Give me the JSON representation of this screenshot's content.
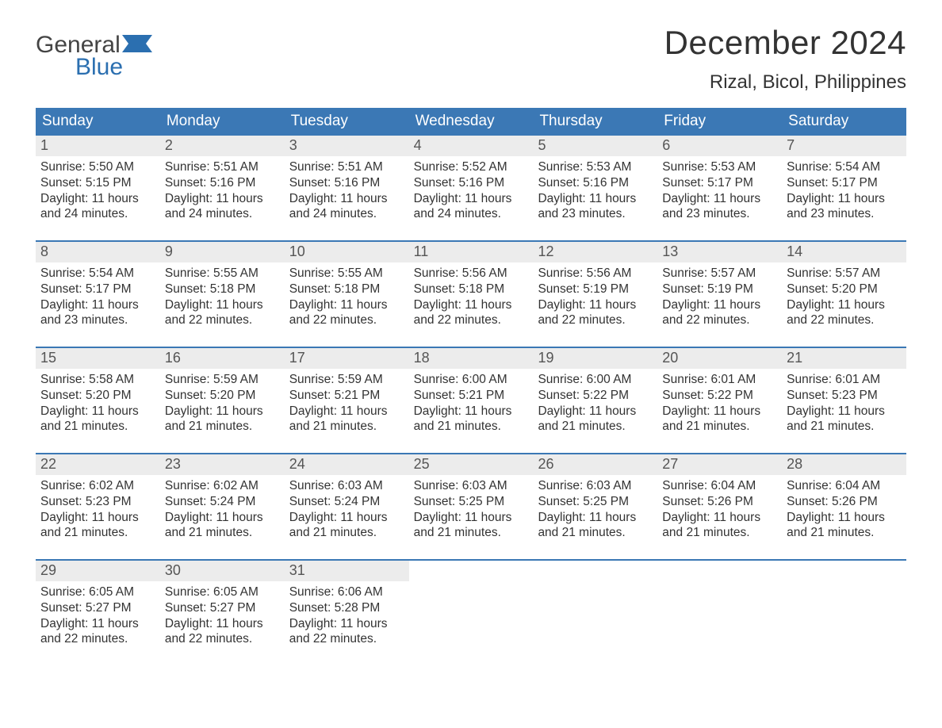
{
  "brand": {
    "word1": "General",
    "word2": "Blue",
    "word1_color": "#444444",
    "word2_color": "#2b6fb0",
    "flag_color": "#2b6fb0",
    "font_size_pt": 30
  },
  "title": {
    "month_year": "December 2024",
    "location": "Rizal, Bicol, Philippines",
    "month_fontsize": 42,
    "location_fontsize": 24,
    "color": "#333333"
  },
  "calendar": {
    "type": "table",
    "header_bg": "#3b78b5",
    "header_fg": "#ffffff",
    "header_fontsize": 19,
    "daynum_bg": "#ececec",
    "daynum_fg": "#555555",
    "daynum_fontsize": 18,
    "body_fontsize": 15.5,
    "body_fg": "#333333",
    "week_border_color": "#3b78b5",
    "background_color": "#ffffff",
    "columns": [
      "Sunday",
      "Monday",
      "Tuesday",
      "Wednesday",
      "Thursday",
      "Friday",
      "Saturday"
    ],
    "weeks": [
      [
        {
          "n": "1",
          "sunrise": "Sunrise: 5:50 AM",
          "sunset": "Sunset: 5:15 PM",
          "d1": "Daylight: 11 hours",
          "d2": "and 24 minutes."
        },
        {
          "n": "2",
          "sunrise": "Sunrise: 5:51 AM",
          "sunset": "Sunset: 5:16 PM",
          "d1": "Daylight: 11 hours",
          "d2": "and 24 minutes."
        },
        {
          "n": "3",
          "sunrise": "Sunrise: 5:51 AM",
          "sunset": "Sunset: 5:16 PM",
          "d1": "Daylight: 11 hours",
          "d2": "and 24 minutes."
        },
        {
          "n": "4",
          "sunrise": "Sunrise: 5:52 AM",
          "sunset": "Sunset: 5:16 PM",
          "d1": "Daylight: 11 hours",
          "d2": "and 24 minutes."
        },
        {
          "n": "5",
          "sunrise": "Sunrise: 5:53 AM",
          "sunset": "Sunset: 5:16 PM",
          "d1": "Daylight: 11 hours",
          "d2": "and 23 minutes."
        },
        {
          "n": "6",
          "sunrise": "Sunrise: 5:53 AM",
          "sunset": "Sunset: 5:17 PM",
          "d1": "Daylight: 11 hours",
          "d2": "and 23 minutes."
        },
        {
          "n": "7",
          "sunrise": "Sunrise: 5:54 AM",
          "sunset": "Sunset: 5:17 PM",
          "d1": "Daylight: 11 hours",
          "d2": "and 23 minutes."
        }
      ],
      [
        {
          "n": "8",
          "sunrise": "Sunrise: 5:54 AM",
          "sunset": "Sunset: 5:17 PM",
          "d1": "Daylight: 11 hours",
          "d2": "and 23 minutes."
        },
        {
          "n": "9",
          "sunrise": "Sunrise: 5:55 AM",
          "sunset": "Sunset: 5:18 PM",
          "d1": "Daylight: 11 hours",
          "d2": "and 22 minutes."
        },
        {
          "n": "10",
          "sunrise": "Sunrise: 5:55 AM",
          "sunset": "Sunset: 5:18 PM",
          "d1": "Daylight: 11 hours",
          "d2": "and 22 minutes."
        },
        {
          "n": "11",
          "sunrise": "Sunrise: 5:56 AM",
          "sunset": "Sunset: 5:18 PM",
          "d1": "Daylight: 11 hours",
          "d2": "and 22 minutes."
        },
        {
          "n": "12",
          "sunrise": "Sunrise: 5:56 AM",
          "sunset": "Sunset: 5:19 PM",
          "d1": "Daylight: 11 hours",
          "d2": "and 22 minutes."
        },
        {
          "n": "13",
          "sunrise": "Sunrise: 5:57 AM",
          "sunset": "Sunset: 5:19 PM",
          "d1": "Daylight: 11 hours",
          "d2": "and 22 minutes."
        },
        {
          "n": "14",
          "sunrise": "Sunrise: 5:57 AM",
          "sunset": "Sunset: 5:20 PM",
          "d1": "Daylight: 11 hours",
          "d2": "and 22 minutes."
        }
      ],
      [
        {
          "n": "15",
          "sunrise": "Sunrise: 5:58 AM",
          "sunset": "Sunset: 5:20 PM",
          "d1": "Daylight: 11 hours",
          "d2": "and 21 minutes."
        },
        {
          "n": "16",
          "sunrise": "Sunrise: 5:59 AM",
          "sunset": "Sunset: 5:20 PM",
          "d1": "Daylight: 11 hours",
          "d2": "and 21 minutes."
        },
        {
          "n": "17",
          "sunrise": "Sunrise: 5:59 AM",
          "sunset": "Sunset: 5:21 PM",
          "d1": "Daylight: 11 hours",
          "d2": "and 21 minutes."
        },
        {
          "n": "18",
          "sunrise": "Sunrise: 6:00 AM",
          "sunset": "Sunset: 5:21 PM",
          "d1": "Daylight: 11 hours",
          "d2": "and 21 minutes."
        },
        {
          "n": "19",
          "sunrise": "Sunrise: 6:00 AM",
          "sunset": "Sunset: 5:22 PM",
          "d1": "Daylight: 11 hours",
          "d2": "and 21 minutes."
        },
        {
          "n": "20",
          "sunrise": "Sunrise: 6:01 AM",
          "sunset": "Sunset: 5:22 PM",
          "d1": "Daylight: 11 hours",
          "d2": "and 21 minutes."
        },
        {
          "n": "21",
          "sunrise": "Sunrise: 6:01 AM",
          "sunset": "Sunset: 5:23 PM",
          "d1": "Daylight: 11 hours",
          "d2": "and 21 minutes."
        }
      ],
      [
        {
          "n": "22",
          "sunrise": "Sunrise: 6:02 AM",
          "sunset": "Sunset: 5:23 PM",
          "d1": "Daylight: 11 hours",
          "d2": "and 21 minutes."
        },
        {
          "n": "23",
          "sunrise": "Sunrise: 6:02 AM",
          "sunset": "Sunset: 5:24 PM",
          "d1": "Daylight: 11 hours",
          "d2": "and 21 minutes."
        },
        {
          "n": "24",
          "sunrise": "Sunrise: 6:03 AM",
          "sunset": "Sunset: 5:24 PM",
          "d1": "Daylight: 11 hours",
          "d2": "and 21 minutes."
        },
        {
          "n": "25",
          "sunrise": "Sunrise: 6:03 AM",
          "sunset": "Sunset: 5:25 PM",
          "d1": "Daylight: 11 hours",
          "d2": "and 21 minutes."
        },
        {
          "n": "26",
          "sunrise": "Sunrise: 6:03 AM",
          "sunset": "Sunset: 5:25 PM",
          "d1": "Daylight: 11 hours",
          "d2": "and 21 minutes."
        },
        {
          "n": "27",
          "sunrise": "Sunrise: 6:04 AM",
          "sunset": "Sunset: 5:26 PM",
          "d1": "Daylight: 11 hours",
          "d2": "and 21 minutes."
        },
        {
          "n": "28",
          "sunrise": "Sunrise: 6:04 AM",
          "sunset": "Sunset: 5:26 PM",
          "d1": "Daylight: 11 hours",
          "d2": "and 21 minutes."
        }
      ],
      [
        {
          "n": "29",
          "sunrise": "Sunrise: 6:05 AM",
          "sunset": "Sunset: 5:27 PM",
          "d1": "Daylight: 11 hours",
          "d2": "and 22 minutes."
        },
        {
          "n": "30",
          "sunrise": "Sunrise: 6:05 AM",
          "sunset": "Sunset: 5:27 PM",
          "d1": "Daylight: 11 hours",
          "d2": "and 22 minutes."
        },
        {
          "n": "31",
          "sunrise": "Sunrise: 6:06 AM",
          "sunset": "Sunset: 5:28 PM",
          "d1": "Daylight: 11 hours",
          "d2": "and 22 minutes."
        },
        {
          "empty": true
        },
        {
          "empty": true
        },
        {
          "empty": true
        },
        {
          "empty": true
        }
      ]
    ]
  }
}
